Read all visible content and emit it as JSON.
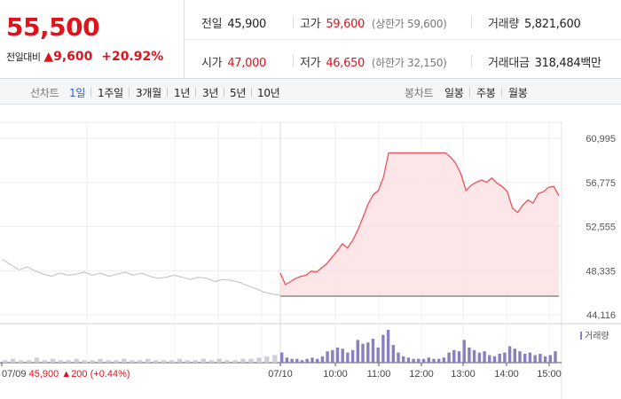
{
  "summary": {
    "price": "55,500",
    "change_label": "전일대비",
    "change_value": "9,600",
    "change_pct": "+20.92%"
  },
  "stats": {
    "prev_close": {
      "label": "전일",
      "value": "45,900"
    },
    "open": {
      "label": "시가",
      "value": "47,000"
    },
    "high": {
      "label": "고가",
      "value": "59,600",
      "limit_label": "(상한가",
      "limit_value": "59,600)"
    },
    "low": {
      "label": "저가",
      "value": "46,650",
      "limit_label": "(하한가",
      "limit_value": "32,150)"
    },
    "volume": {
      "label": "거래량",
      "value": "5,821,600"
    },
    "amount": {
      "label": "거래대금",
      "value": "318,484",
      "unit": "백만"
    }
  },
  "tabs": {
    "line_label": "선차트",
    "line": [
      "1일",
      "1주일",
      "3개월",
      "1년",
      "3년",
      "5년",
      "10년"
    ],
    "active": "1일",
    "candle_label": "봉차트",
    "candle": [
      "일봉",
      "주봉",
      "월봉"
    ]
  },
  "chart_data": {
    "type": "line",
    "y_ticks": [
      "60,995",
      "56,775",
      "52,555",
      "48,335",
      "44,116"
    ],
    "y_tick_values": [
      60995,
      56775,
      52555,
      48335,
      44116
    ],
    "ylim": [
      44116,
      60995
    ],
    "x_ticks": [
      "07/09",
      "07/10",
      "10:00",
      "11:00",
      "12:00",
      "13:00",
      "14:00",
      "15:00"
    ],
    "previous_day": {
      "date": "07/09",
      "close_label": "45,900",
      "change_label": "200",
      "change_pct_label": "(+0.44%)",
      "values": [
        49400,
        48900,
        48400,
        48700,
        48300,
        48000,
        47800,
        48100,
        47900,
        48000,
        48200,
        47900,
        48100,
        47800,
        48000,
        48200,
        47900,
        48100,
        47800,
        47600,
        47700,
        47900,
        47700,
        47500,
        47700,
        47600,
        47300,
        47500,
        47400,
        47200,
        46900,
        46600,
        46300,
        46100,
        46000
      ]
    },
    "today": {
      "date": "07/10",
      "base": 45900,
      "values": [
        48100,
        47000,
        47300,
        47600,
        47800,
        47900,
        48300,
        48200,
        48600,
        49000,
        49600,
        50200,
        50900,
        50500,
        51200,
        52200,
        53400,
        54700,
        55600,
        56000,
        57300,
        59600,
        59600,
        59600,
        59600,
        59600,
        59600,
        59600,
        59600,
        59600,
        59600,
        59600,
        59600,
        59200,
        58600,
        57600,
        56000,
        56500,
        56800,
        57000,
        56800,
        57200,
        56700,
        56400,
        55900,
        54300,
        53900,
        54600,
        55100,
        54800,
        55700,
        55900,
        56300,
        56400,
        55500
      ]
    },
    "volume": {
      "legend": "거래량",
      "previous_day": [
        2,
        3,
        2,
        2,
        4,
        2,
        3,
        2,
        2,
        3,
        2,
        2,
        3,
        2,
        2,
        3,
        2,
        2,
        3,
        2,
        2,
        2,
        3,
        2,
        2,
        3,
        2,
        3,
        2,
        2,
        3,
        3,
        4,
        5,
        6
      ],
      "today": [
        8,
        4,
        3,
        3,
        2,
        3,
        4,
        3,
        5,
        9,
        10,
        12,
        11,
        8,
        10,
        18,
        15,
        16,
        19,
        12,
        22,
        26,
        14,
        8,
        5,
        4,
        3,
        3,
        3,
        4,
        3,
        3,
        4,
        8,
        10,
        9,
        18,
        12,
        10,
        8,
        9,
        6,
        5,
        7,
        8,
        13,
        11,
        9,
        7,
        8,
        6,
        7,
        5,
        6,
        9
      ]
    }
  },
  "colors": {
    "up": "#e0121c",
    "up_line": "#ec5057",
    "fill": "#fde2e3",
    "prev_line": "#c8c8c8",
    "volume": "#8a7fbf",
    "active_tab": "#2f5bd1"
  }
}
